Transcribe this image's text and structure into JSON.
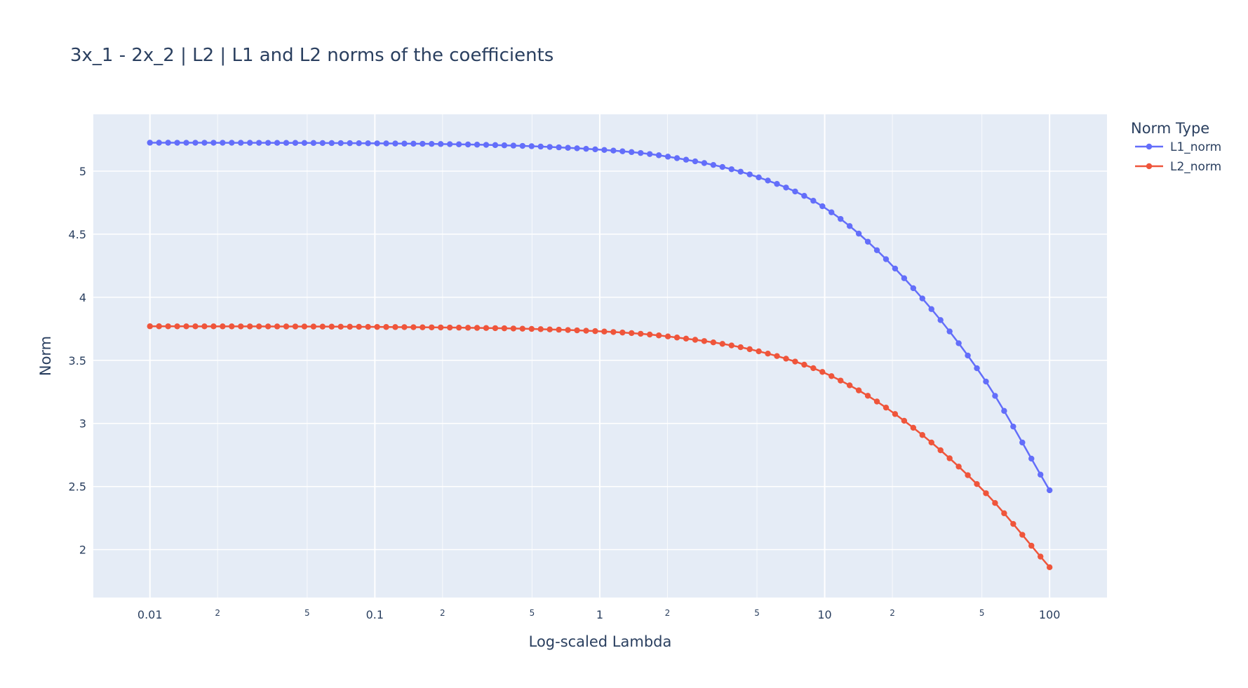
{
  "chart_data": {
    "type": "line",
    "title": "3x_1 - 2x_2 | L2 | L1 and L2 norms of the coefficients",
    "xlabel": "Log-scaled Lambda",
    "ylabel": "Norm",
    "x_scale": "log",
    "xlim": [
      0.0056,
      180
    ],
    "ylim": [
      1.62,
      5.45
    ],
    "x_ticks": [
      0.01,
      0.1,
      1,
      10,
      100
    ],
    "x_tick_labels": [
      "0.01",
      "0.1",
      "1",
      "10",
      "100"
    ],
    "x_minor_ticks": [
      0.02,
      0.05,
      0.2,
      0.5,
      2,
      5,
      20,
      50
    ],
    "x_minor_tick_labels": [
      "2",
      "5",
      "2",
      "5",
      "2",
      "5",
      "2",
      "5"
    ],
    "y_ticks": [
      2,
      2.5,
      3,
      3.5,
      4,
      4.5,
      5
    ],
    "y_tick_labels": [
      "2",
      "2.5",
      "3",
      "3.5",
      "4",
      "4.5",
      "5"
    ],
    "grid": true,
    "legend": {
      "title": "Norm Type",
      "placement": "top-right, outside plot"
    },
    "num_points": 100,
    "x_range_log10": [
      -2,
      2
    ],
    "series": [
      {
        "name": "L1_norm",
        "color": "#636efa",
        "marker": "circle",
        "y_at_x": {
          "0.01": 5.225,
          "0.1": 5.22,
          "1": 5.17,
          "2": 5.115,
          "5": 4.955,
          "10": 4.71,
          "20": 4.25,
          "50": 3.38,
          "100": 2.47
        }
      },
      {
        "name": "L2_norm",
        "color": "#ef553b",
        "marker": "circle",
        "y_at_x": {
          "0.01": 3.77,
          "0.1": 3.765,
          "1": 3.73,
          "2": 3.69,
          "5": 3.575,
          "10": 3.4,
          "20": 3.09,
          "50": 2.48,
          "100": 1.86
        }
      }
    ]
  }
}
